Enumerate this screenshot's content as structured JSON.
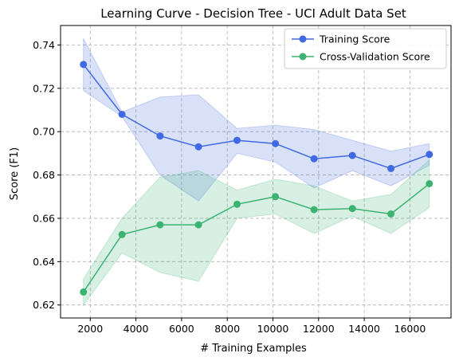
{
  "chart_data": {
    "type": "line",
    "title": "Learning Curve - Decision Tree - UCI Adult Data Set",
    "xlabel": "# Training Examples",
    "ylabel": "Score (F1)",
    "xlim": [
      700,
      17800
    ],
    "ylim": [
      0.614,
      0.749
    ],
    "xticks": [
      2000,
      4000,
      6000,
      8000,
      10000,
      12000,
      14000,
      16000
    ],
    "yticks": [
      0.62,
      0.64,
      0.66,
      0.68,
      0.7,
      0.72,
      0.74
    ],
    "xtick_labels": [
      "2000",
      "4000",
      "6000",
      "8000",
      "10000",
      "12000",
      "14000",
      "16000"
    ],
    "ytick_labels": [
      "0.62",
      "0.64",
      "0.66",
      "0.68",
      "0.70",
      "0.72",
      "0.74"
    ],
    "grid": true,
    "legend_position": "top-right",
    "x": [
      1700,
      3390,
      5060,
      6740,
      8430,
      10110,
      11800,
      13480,
      15170,
      16850
    ],
    "series": [
      {
        "name": "Training Score",
        "color": "#4169e1",
        "values": [
          0.731,
          0.708,
          0.698,
          0.693,
          0.696,
          0.6945,
          0.6875,
          0.689,
          0.683,
          0.6895
        ],
        "upper": [
          0.743,
          0.709,
          0.716,
          0.717,
          0.7015,
          0.703,
          0.701,
          0.696,
          0.691,
          0.6945
        ],
        "lower": [
          0.719,
          0.707,
          0.68,
          0.668,
          0.69,
          0.686,
          0.674,
          0.682,
          0.675,
          0.6845
        ]
      },
      {
        "name": "Cross-Validation Score",
        "color": "#3cb371",
        "values": [
          0.626,
          0.6525,
          0.657,
          0.657,
          0.6665,
          0.67,
          0.664,
          0.6645,
          0.662,
          0.676
        ],
        "upper": [
          0.632,
          0.66,
          0.679,
          0.682,
          0.673,
          0.678,
          0.675,
          0.668,
          0.671,
          0.687
        ],
        "lower": [
          0.62,
          0.644,
          0.635,
          0.631,
          0.66,
          0.662,
          0.653,
          0.661,
          0.653,
          0.665
        ]
      }
    ]
  }
}
